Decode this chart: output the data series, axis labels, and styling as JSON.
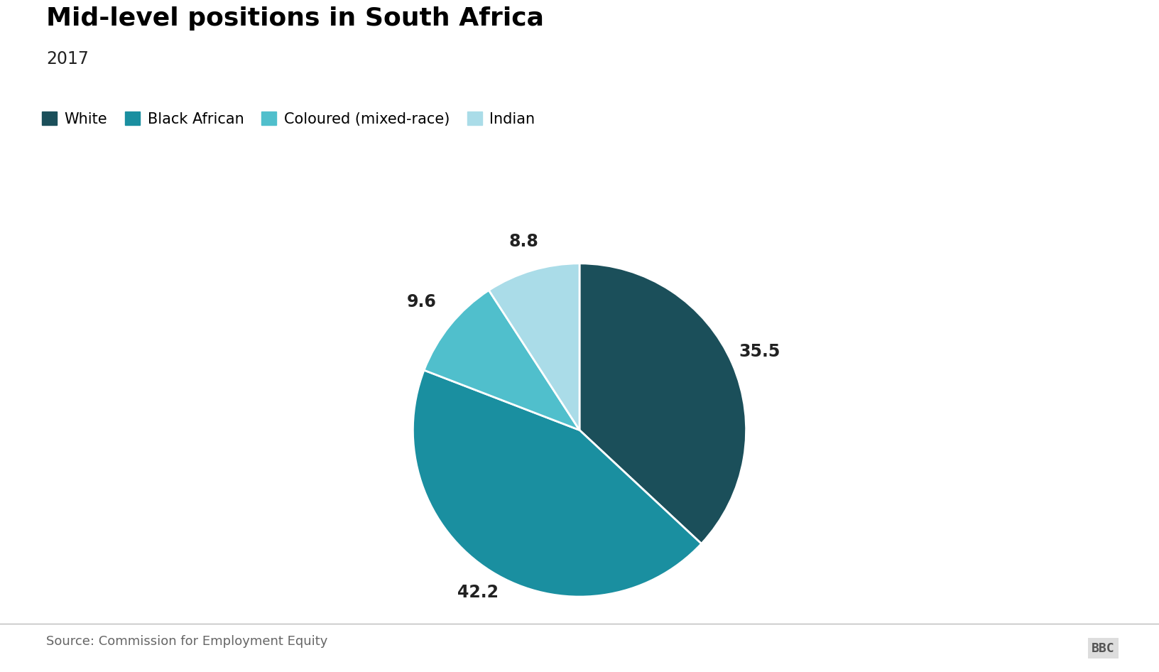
{
  "title": "Mid-level positions in South Africa",
  "subtitle": "2017",
  "slices": [
    35.5,
    42.2,
    9.6,
    8.8
  ],
  "labels": [
    "White",
    "Black African",
    "Coloured (mixed-race)",
    "Indian"
  ],
  "colors": [
    "#1b4f5a",
    "#1a8fa0",
    "#50bfcc",
    "#aadce8"
  ],
  "label_values": [
    "35.5",
    "42.2",
    "9.6",
    "8.8"
  ],
  "source": "Source: Commission for Employment Equity",
  "bbc_label": "BBC",
  "background_color": "#ffffff",
  "title_fontsize": 26,
  "subtitle_fontsize": 17,
  "legend_fontsize": 15,
  "annotation_fontsize": 17,
  "source_fontsize": 13
}
